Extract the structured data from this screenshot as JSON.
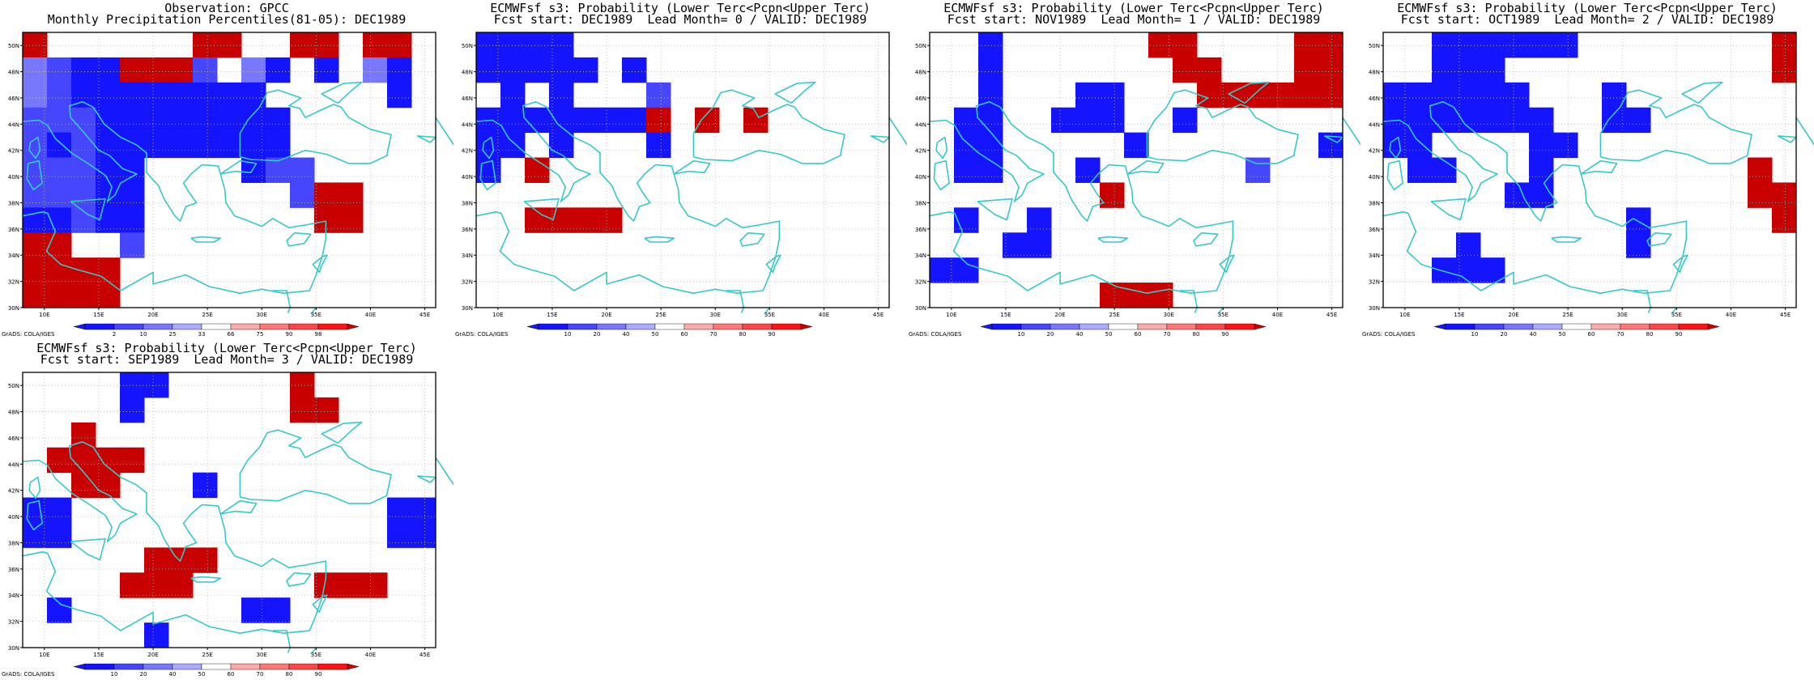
{
  "axes": {
    "lat_ticks": [
      "30N",
      "32N",
      "34N",
      "36N",
      "38N",
      "40N",
      "42N",
      "44N",
      "46N",
      "48N",
      "50N"
    ],
    "lon_ticks": [
      "10E",
      "15E",
      "20E",
      "25E",
      "30E",
      "35E",
      "40E",
      "45E"
    ]
  },
  "credit": "GrADS: COLA/IGES",
  "colors": {
    "coast": "#35c9c9",
    "scale": [
      "#1414ff",
      "#4646ff",
      "#7878ff",
      "#aaaaff",
      "#ffffff",
      "#ffaaaa",
      "#ff7878",
      "#ff4646",
      "#ff1414",
      "#c80000"
    ]
  },
  "panels": [
    {
      "title1": "Observation: GPCC",
      "title2": "Monthly Precipitation Percentiles(81-05): DEC1989",
      "colorbar": [
        "2",
        "10",
        "25",
        "33",
        "66",
        "75",
        "90",
        "98"
      ],
      "grid": [
        "60000005600660550",
        "32116662031010310",
        "32111111110000010",
        "22211111111000000",
        "21211111111000000",
        "22211000012200000",
        "22211000000266000",
        "11211000000066000",
        "65002000000000000",
        "99990000000000000",
        "99990000000000000"
      ]
    },
    {
      "title1": "ECMWFsf s3: Probability (Lower Terc<Pcpn<Upper Terc)",
      "title2": "Fcst start: DEC1989  Lead Month= 0 / VALID: DEC1989",
      "colorbar": [
        "10",
        "20",
        "40",
        "50",
        "60",
        "70",
        "80",
        "90"
      ],
      "grid": [
        "11110000000000000",
        "11111010000000000",
        "01010002000000000",
        "11111116060600000",
        "11010001000000000",
        "10500000000000000",
        "00000000000000000",
        "00777700000000000",
        "00000000000000000",
        "00000000000000000",
        "00000000000000000"
      ]
    },
    {
      "title1": "ECMWFsf s3: Probability (Lower Terc<Pcpn<Upper Terc)",
      "title2": "Fcst start: NOV1989  Lead Month= 1 / VALID: DEC1989",
      "colorbar": [
        "10",
        "20",
        "40",
        "50",
        "60",
        "70",
        "80",
        "90"
      ],
      "grid": [],
      "note": ""
    },
    {
      "title1": "ECMWFsf s3: Probability (Lower Terc<Pcpn<Upper Terc)",
      "title2": "Fcst start: OCT1989  Lead Month= 2 / VALID: DEC1989",
      "colorbar": [
        "10",
        "20",
        "40",
        "50",
        "60",
        "70",
        "80",
        "90"
      ],
      "grid": []
    },
    {
      "title1": "ECMWFsf s3: Probability (Lower Terc<Pcpn<Upper Terc)",
      "title2": "Fcst start: SEP1989  Lead Month= 3 / VALID: DEC1989",
      "colorbar": [
        "10",
        "20",
        "40",
        "50",
        "60",
        "70",
        "80",
        "90"
      ],
      "grid": []
    }
  ]
}
